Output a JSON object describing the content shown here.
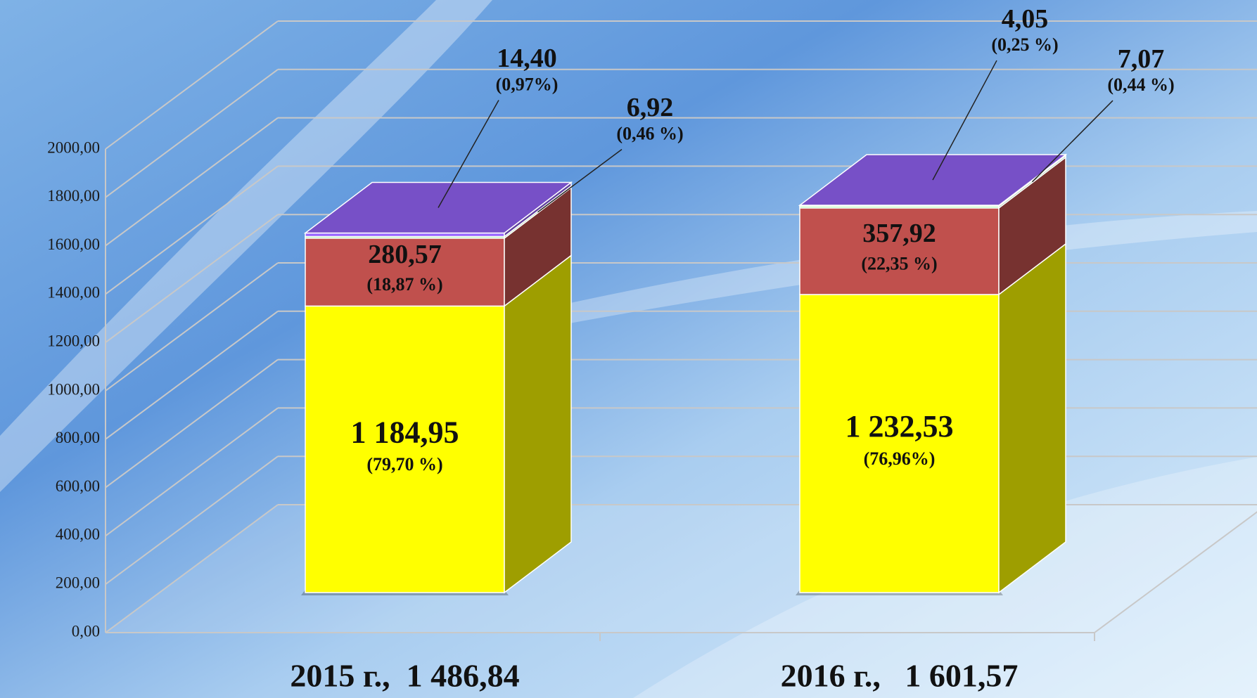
{
  "chart_data": {
    "type": "bar3d_stacked",
    "categories": [
      "2015 г.,  1 486,84",
      "2016 г.,   1 601,57"
    ],
    "series": [
      {
        "color": "#ffff00",
        "values": [
          1184.95,
          1232.53
        ],
        "value_labels": [
          "1 184,95",
          "1 232,53"
        ],
        "share_labels": [
          "(79,70 %)",
          "(76,96%)"
        ]
      },
      {
        "color": "#c0504d",
        "values": [
          280.57,
          357.92
        ],
        "value_labels": [
          "280,57",
          "357,92"
        ],
        "share_labels": [
          "(18,87 %)",
          "(22,35 %)"
        ]
      },
      {
        "color": "#99ff99",
        "values": [
          6.92,
          7.07
        ],
        "value_labels": [
          "6,92",
          "7,07"
        ],
        "share_labels": [
          "(0,46 %)",
          "(0,44 %)"
        ]
      },
      {
        "color": "#9966ff",
        "values": [
          14.4,
          4.05
        ],
        "value_labels": [
          "14,40",
          "4,05"
        ],
        "share_labels": [
          "(0,97%)",
          "(0,25 %)"
        ]
      }
    ],
    "ylim": [
      0,
      2000
    ],
    "yticks": [
      {
        "value": 0,
        "label": "0,00"
      },
      {
        "value": 200,
        "label": "200,00"
      },
      {
        "value": 400,
        "label": "400,00"
      },
      {
        "value": 600,
        "label": "600,00"
      },
      {
        "value": 800,
        "label": "800,00"
      },
      {
        "value": 1000,
        "label": "1000,00"
      },
      {
        "value": 1200,
        "label": "1200,00"
      },
      {
        "value": 1400,
        "label": "1400,00"
      },
      {
        "value": 1600,
        "label": "1600,00"
      },
      {
        "value": 1800,
        "label": "1800,00"
      },
      {
        "value": 2000,
        "label": "2000,00"
      }
    ],
    "grid": true
  }
}
